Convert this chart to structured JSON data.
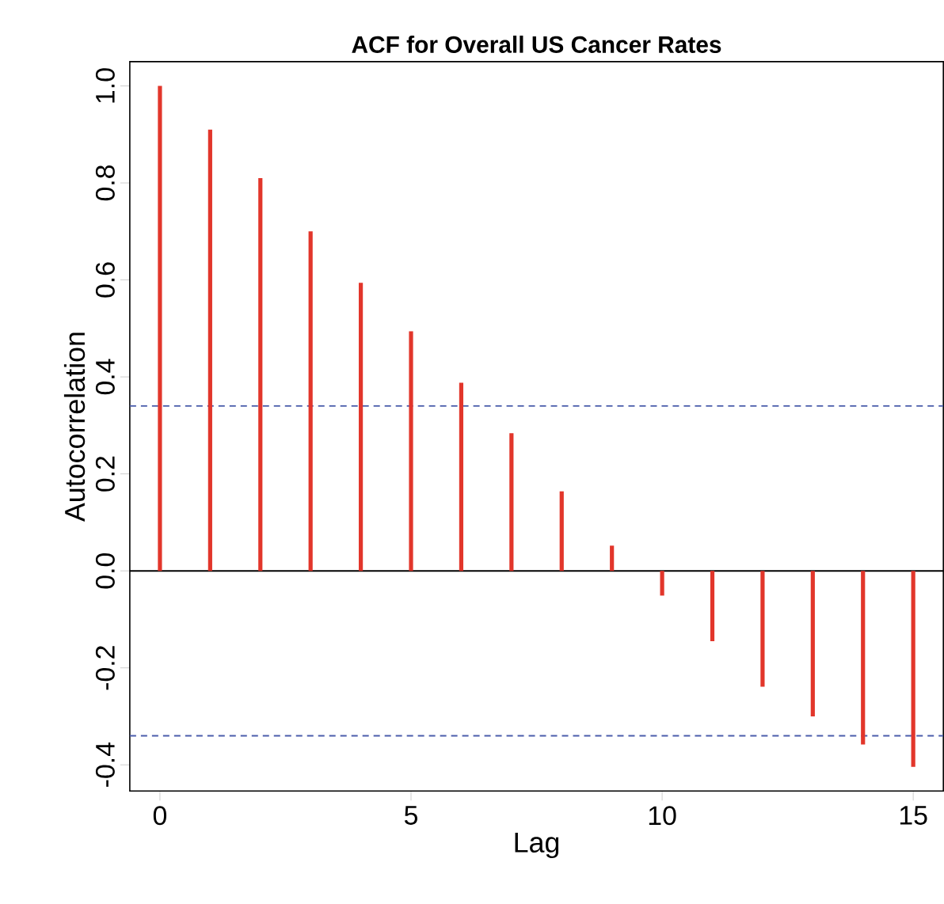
{
  "chart_data": {
    "type": "bar",
    "title": "ACF for Overall US Cancer Rates",
    "xlabel": "Lag",
    "ylabel": "Autocorrelation",
    "x": [
      0,
      1,
      2,
      3,
      4,
      5,
      6,
      7,
      8,
      9,
      10,
      11,
      12,
      13,
      14,
      15
    ],
    "values": [
      1.0,
      0.91,
      0.81,
      0.7,
      0.594,
      0.494,
      0.388,
      0.284,
      0.164,
      0.052,
      -0.051,
      -0.145,
      -0.239,
      -0.3,
      -0.358,
      -0.404
    ],
    "color": "#e2362b",
    "xlim": [
      -0.6,
      15.6
    ],
    "ylim": [
      -0.454,
      1.05
    ],
    "xticks": [
      0,
      5,
      10,
      15
    ],
    "yticks": [
      -0.4,
      -0.2,
      {
        "value": 0,
        "label": "0.0"
      },
      0.2,
      0.4,
      0.6,
      0.8,
      {
        "value": 1,
        "label": "1.0"
      }
    ],
    "ref_lines": [
      {
        "axis": "y",
        "value": 0.34,
        "color": "#4b5dab",
        "line_style": "dashed"
      },
      {
        "axis": "y",
        "value": -0.34,
        "color": "#4b5dab",
        "line_style": "dashed"
      },
      {
        "axis": "y",
        "value": 0,
        "color": "#000000",
        "line_style": "solid"
      }
    ],
    "marker": "none",
    "grid": false
  }
}
